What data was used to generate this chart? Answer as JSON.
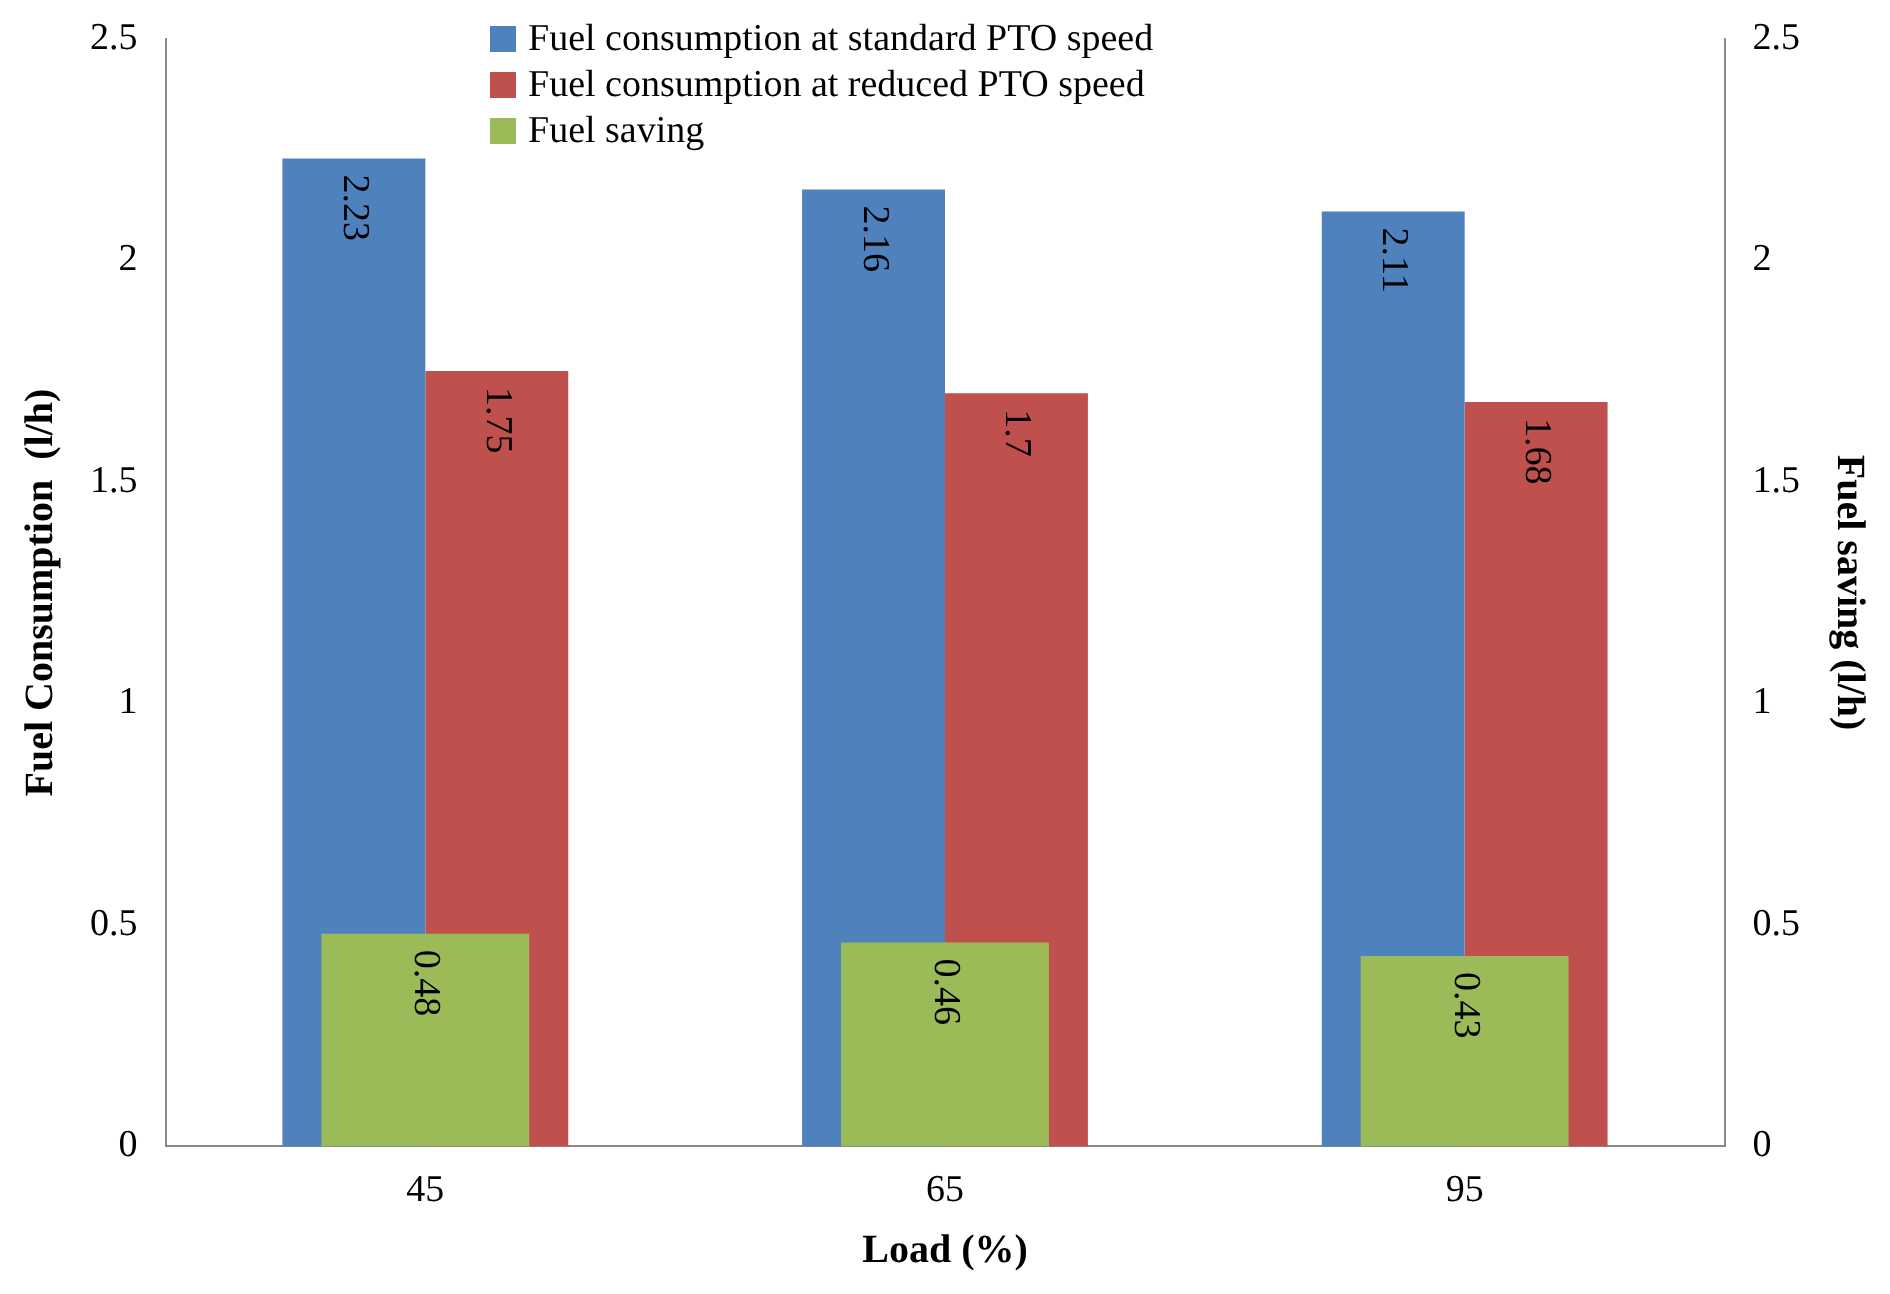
{
  "chart_data": {
    "type": "bar",
    "xlabel": "Load (%)",
    "ylabel": "Fuel Consumption  (l/h)",
    "y2label": "Fuel saving (l/h)",
    "categories": [
      "45",
      "65",
      "95"
    ],
    "series": [
      {
        "name": "Fuel consumption at standard PTO speed",
        "color": "#4f81bd",
        "values": [
          2.23,
          2.16,
          2.11
        ]
      },
      {
        "name": "Fuel consumption at reduced PTO speed",
        "color": "#c0504d",
        "values": [
          1.75,
          1.7,
          1.68
        ]
      },
      {
        "name": "Fuel saving",
        "color": "#9bbb59",
        "values": [
          0.48,
          0.46,
          0.43
        ],
        "axis": "y2"
      }
    ],
    "ylim": [
      0,
      2.5
    ],
    "yticks": [
      0,
      0.5,
      1,
      1.5,
      2,
      2.5
    ],
    "y2lim": [
      0,
      2.5
    ],
    "y2ticks": [
      0,
      0.5,
      1,
      1.5,
      2,
      2.5
    ],
    "grid": false,
    "legend": "top",
    "data_labels": true
  }
}
